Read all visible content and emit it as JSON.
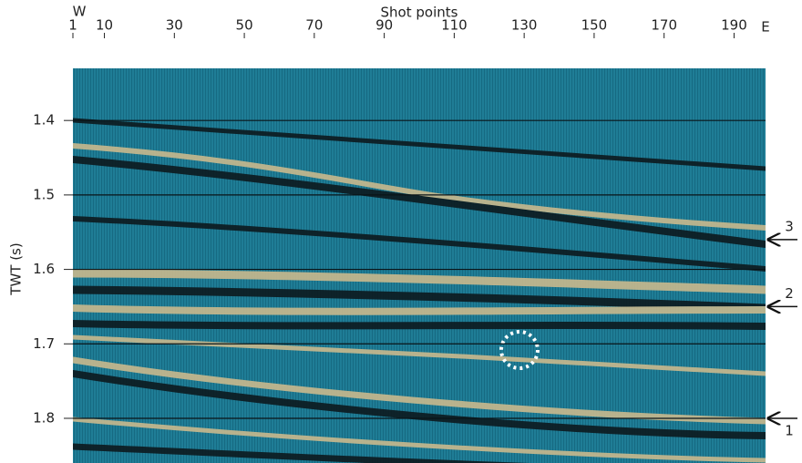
{
  "chart_data": {
    "type": "seismic",
    "title": "Shot points",
    "y_label": "TWT (s)",
    "left_label": "W",
    "right_label": "E",
    "xlim": [
      1,
      199
    ],
    "xticks": [
      1,
      10,
      30,
      50,
      70,
      90,
      110,
      130,
      150,
      170,
      190
    ],
    "ylim": [
      1.33,
      1.86
    ],
    "y_reversed": true,
    "yticks": [
      1.4,
      1.5,
      1.6,
      1.7,
      1.8
    ],
    "grid": true,
    "annotations": [
      {
        "text": "3",
        "y": 1.56
      },
      {
        "text": "2",
        "y": 1.65
      },
      {
        "text": "1",
        "y": 1.8
      }
    ]
  }
}
